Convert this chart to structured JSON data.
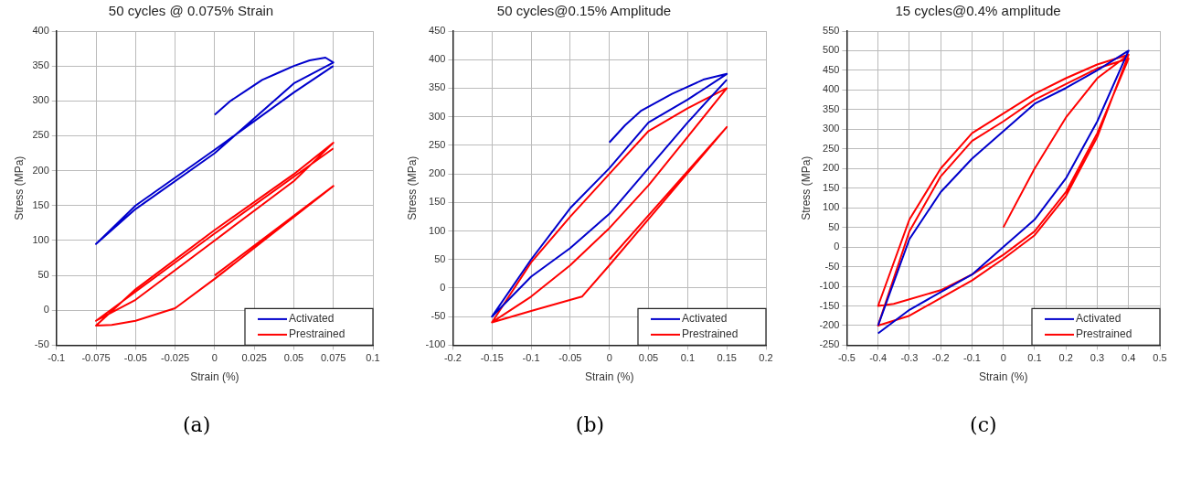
{
  "chart_data": [
    {
      "type": "line",
      "title": "50 cycles @ 0.075% Strain",
      "xlabel": "Strain (%)",
      "ylabel": "Stress (MPa)",
      "xlim": [
        -0.1,
        0.1
      ],
      "xticks": [
        -0.1,
        -0.075,
        -0.05,
        -0.025,
        0,
        0.025,
        0.05,
        0.075,
        0.1
      ],
      "ylim": [
        -50,
        400
      ],
      "yticks": [
        -50,
        0,
        50,
        100,
        150,
        200,
        250,
        300,
        350,
        400
      ],
      "grid": true,
      "legend": "bottom right",
      "marker": "none",
      "line_style": "solid",
      "annotations": [
        "(a)"
      ],
      "series": [
        {
          "name": "Activated",
          "color": "#0000cc",
          "x": [
            0,
            0.01,
            0.02,
            0.03,
            0.04,
            0.05,
            0.06,
            0.07,
            0.075,
            0.05,
            0,
            -0.05,
            -0.075,
            -0.05,
            0,
            0.05,
            0.075
          ],
          "values": [
            280,
            300,
            315,
            330,
            340,
            350,
            358,
            362,
            355,
            325,
            225,
            145,
            95,
            150,
            230,
            312,
            350
          ]
        },
        {
          "name": "Prestrained",
          "color": "#ff0000",
          "x": [
            0,
            0.075,
            0,
            -0.025,
            -0.05,
            -0.065,
            -0.075,
            -0.05,
            0,
            0.05,
            0.075,
            0.05,
            0,
            -0.05,
            -0.075,
            0,
            0.075
          ],
          "values": [
            50,
            178,
            45,
            3,
            -15,
            -21,
            -22,
            30,
            115,
            195,
            240,
            185,
            100,
            15,
            -15,
            110,
            232
          ]
        }
      ]
    },
    {
      "type": "line",
      "title": "50 cycles@0.15% Amplitude",
      "xlabel": "Strain (%)",
      "ylabel": "Stress (MPa)",
      "xlim": [
        -0.2,
        0.2
      ],
      "xticks": [
        -0.2,
        -0.15,
        -0.1,
        -0.05,
        0,
        0.05,
        0.1,
        0.15,
        0.2
      ],
      "ylim": [
        -100,
        450
      ],
      "yticks": [
        -100,
        -50,
        0,
        50,
        100,
        150,
        200,
        250,
        300,
        350,
        400,
        450
      ],
      "grid": true,
      "legend": "bottom right",
      "marker": "none",
      "line_style": "solid",
      "annotations": [
        "(b)"
      ],
      "series": [
        {
          "name": "Activated",
          "color": "#0000cc",
          "x": [
            0,
            0.02,
            0.04,
            0.08,
            0.12,
            0.15,
            0.1,
            0.05,
            0,
            -0.05,
            -0.1,
            -0.15,
            -0.1,
            -0.05,
            0,
            0.05,
            0.1,
            0.15
          ],
          "values": [
            255,
            285,
            310,
            340,
            365,
            375,
            330,
            290,
            210,
            140,
            50,
            -50,
            20,
            70,
            130,
            210,
            290,
            365
          ]
        },
        {
          "name": "Prestrained",
          "color": "#ff0000",
          "x": [
            0,
            0.15,
            0,
            -0.035,
            -0.1,
            -0.15,
            -0.1,
            -0.05,
            0,
            0.05,
            0.1,
            0.15,
            0.1,
            0.05,
            0,
            -0.05,
            -0.1,
            -0.15
          ],
          "values": [
            50,
            282,
            40,
            -15,
            -40,
            -60,
            -15,
            40,
            105,
            180,
            265,
            350,
            315,
            275,
            200,
            125,
            45,
            -60
          ]
        }
      ]
    },
    {
      "type": "line",
      "title": "15 cycles@0.4% amplitude",
      "xlabel": "Strain (%)",
      "ylabel": "Stress (MPa)",
      "xlim": [
        -0.5,
        0.5
      ],
      "xticks": [
        -0.5,
        -0.4,
        -0.3,
        -0.2,
        -0.1,
        0,
        0.1,
        0.2,
        0.3,
        0.4,
        0.5
      ],
      "ylim": [
        -250,
        550
      ],
      "yticks": [
        -250,
        -200,
        -150,
        -100,
        -50,
        0,
        50,
        100,
        150,
        200,
        250,
        300,
        350,
        400,
        450,
        500,
        550
      ],
      "grid": true,
      "legend": "bottom right",
      "marker": "none",
      "line_style": "solid",
      "annotations": [
        "(c)"
      ],
      "series": [
        {
          "name": "Activated",
          "color": "#0000cc",
          "x": [
            -0.4,
            -0.3,
            -0.2,
            -0.1,
            0,
            0.1,
            0.2,
            0.3,
            0.4,
            0.3,
            0.2,
            0.1,
            0,
            -0.1,
            -0.2,
            -0.3,
            -0.4
          ],
          "values": [
            -220,
            -160,
            -115,
            -70,
            0,
            70,
            175,
            320,
            500,
            450,
            405,
            365,
            295,
            225,
            140,
            20,
            -200
          ]
        },
        {
          "name": "Prestrained",
          "color": "#ff0000",
          "x": [
            0,
            0.1,
            0.2,
            0.3,
            0.4,
            0.3,
            0.2,
            0.1,
            0,
            -0.1,
            -0.2,
            -0.3,
            -0.4,
            -0.35,
            -0.2,
            -0.1,
            0,
            0.1,
            0.2,
            0.3,
            0.4,
            0.3,
            0.2,
            0.1,
            0,
            -0.1,
            -0.2,
            -0.3,
            -0.4,
            -0.3,
            -0.2,
            -0.1,
            0,
            0.1,
            0.2,
            0.3,
            0.4
          ],
          "values": [
            50,
            200,
            330,
            430,
            490,
            465,
            430,
            390,
            340,
            290,
            200,
            70,
            -150,
            -145,
            -110,
            -70,
            -20,
            40,
            140,
            290,
            480,
            455,
            415,
            375,
            320,
            270,
            180,
            40,
            -200,
            -175,
            -130,
            -85,
            -30,
            30,
            130,
            280,
            490
          ]
        }
      ]
    }
  ]
}
